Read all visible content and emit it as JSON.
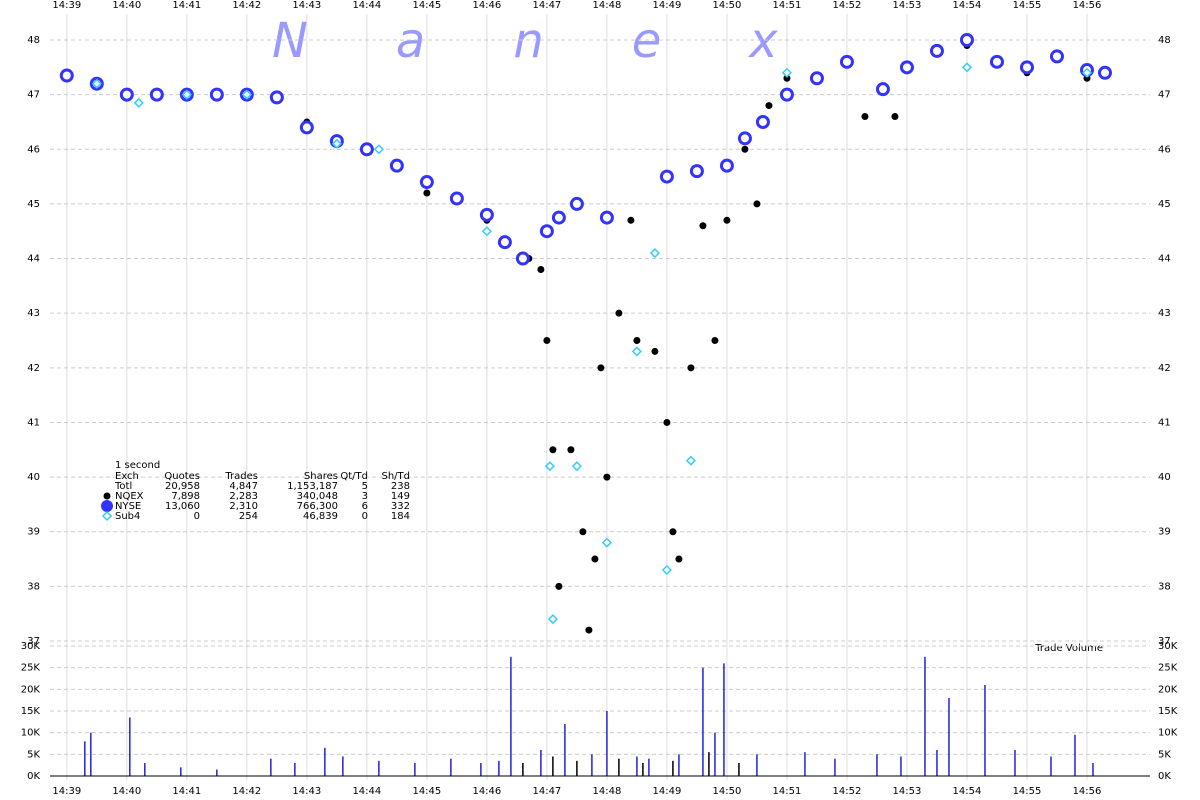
{
  "chart_data": [
    {
      "type": "scatter",
      "watermark": "Nanex",
      "xlim": [
        878.72,
        897.05
      ],
      "xticks": [
        {
          "value": 879,
          "label": "14:39"
        },
        {
          "value": 880,
          "label": "14:40"
        },
        {
          "value": 881,
          "label": "14:41"
        },
        {
          "value": 882,
          "label": "14:42"
        },
        {
          "value": 883,
          "label": "14:43"
        },
        {
          "value": 884,
          "label": "14:44"
        },
        {
          "value": 885,
          "label": "14:45"
        },
        {
          "value": 886,
          "label": "14:46"
        },
        {
          "value": 887,
          "label": "14:47"
        },
        {
          "value": 888,
          "label": "14:48"
        },
        {
          "value": 889,
          "label": "14:49"
        },
        {
          "value": 890,
          "label": "14:50"
        },
        {
          "value": 891,
          "label": "14:51"
        },
        {
          "value": 892,
          "label": "14:52"
        },
        {
          "value": 893,
          "label": "14:53"
        },
        {
          "value": 894,
          "label": "14:54"
        },
        {
          "value": 895,
          "label": "14:55"
        },
        {
          "value": 896,
          "label": "14:56"
        }
      ],
      "ylim": [
        37,
        48
      ],
      "yticks": [
        37,
        38,
        39,
        40,
        41,
        42,
        43,
        44,
        45,
        46,
        47,
        48
      ],
      "grid": true,
      "series": [
        {
          "color": "#000000",
          "marker": "dot",
          "x": [
            879,
            880,
            881,
            882,
            883,
            884,
            885,
            886,
            886.7,
            886.9,
            887,
            887.1,
            887.2,
            887.4,
            887.6,
            887.7,
            887.8,
            887.9,
            888,
            888.2,
            888.4,
            888.5,
            888.8,
            889,
            889.1,
            889.2,
            889.4,
            889.6,
            889.8,
            890,
            890.3,
            890.5,
            890.7,
            891,
            891.5,
            892,
            892.3,
            892.8,
            893,
            894,
            895,
            896,
            896.3
          ],
          "values": [
            47.35,
            47.0,
            47.0,
            47.0,
            46.5,
            46.0,
            45.2,
            44.7,
            44.0,
            43.8,
            42.5,
            40.5,
            38.0,
            40.5,
            39.0,
            37.2,
            38.5,
            42.0,
            40.0,
            43.0,
            44.7,
            42.5,
            42.3,
            41.0,
            39.0,
            38.5,
            42.0,
            44.6,
            42.5,
            44.7,
            46.0,
            45.0,
            46.8,
            47.3,
            47.3,
            47.6,
            46.6,
            46.6,
            47.5,
            47.9,
            47.4,
            47.3,
            47.4
          ]
        },
        {
          "color": "#3333ff",
          "marker": "ring",
          "x": [
            879,
            879.5,
            880,
            880.5,
            881,
            881.5,
            882,
            882.5,
            883,
            883.5,
            884,
            884.5,
            885,
            885.5,
            886,
            886.3,
            886.6,
            887,
            887.2,
            887.5,
            888,
            889,
            889.5,
            890,
            890.3,
            890.6,
            891,
            891.5,
            892,
            892.6,
            893,
            893.5,
            894,
            894.5,
            895,
            895.5,
            896,
            896.3
          ],
          "values": [
            47.35,
            47.2,
            47.0,
            47.0,
            47.0,
            47.0,
            47.0,
            46.95,
            46.4,
            46.15,
            46.0,
            45.7,
            45.4,
            45.1,
            44.8,
            44.3,
            44.0,
            44.5,
            44.75,
            45.0,
            44.75,
            45.5,
            45.6,
            45.7,
            46.2,
            46.5,
            47.0,
            47.3,
            47.6,
            47.1,
            47.5,
            47.8,
            48.0,
            47.6,
            47.5,
            47.7,
            47.45,
            47.4
          ]
        },
        {
          "color": "#33ccff",
          "marker": "diamond",
          "x": [
            879.5,
            880.2,
            881,
            882,
            883.5,
            884.2,
            886,
            887.05,
            887.1,
            887.5,
            888,
            888.5,
            888.8,
            889,
            889.4,
            891,
            894,
            896
          ],
          "values": [
            47.2,
            46.85,
            47.0,
            47.0,
            46.1,
            46.0,
            44.5,
            40.2,
            37.4,
            40.2,
            38.8,
            42.3,
            44.1,
            38.3,
            40.3,
            47.4,
            47.5,
            47.4
          ]
        }
      ],
      "stats": {
        "title": "1 second",
        "headers": [
          "Exch",
          "Quotes",
          "Trades",
          "Shares",
          "Qt/Td",
          "Sh/Td"
        ],
        "rows": [
          [
            "Totl",
            "20,958",
            "4,847",
            "1,153,187",
            "5",
            "238"
          ],
          [
            "NQEX",
            "7,898",
            "2,283",
            "340,048",
            "3",
            "149"
          ],
          [
            "NYSE",
            "13,060",
            "2,310",
            "766,300",
            "6",
            "332"
          ],
          [
            "Sub4",
            "0",
            "254",
            "46,839",
            "0",
            "184"
          ]
        ]
      }
    },
    {
      "type": "volume",
      "label": "Trade Volume",
      "ylim": [
        0,
        30000
      ],
      "yticks": [
        {
          "value": 0,
          "label": "0K"
        },
        {
          "value": 5000,
          "label": "5K"
        },
        {
          "value": 10000,
          "label": "10K"
        },
        {
          "value": 15000,
          "label": "15K"
        },
        {
          "value": 20000,
          "label": "20K"
        },
        {
          "value": 25000,
          "label": "25K"
        },
        {
          "value": 30000,
          "label": "30K"
        }
      ],
      "series": [
        {
          "color": "#2222dd",
          "x": [
            879.3,
            879.4,
            880.05,
            880.3,
            880.9,
            881.5,
            882.4,
            882.8,
            883.3,
            883.6,
            884.2,
            884.8,
            885.4,
            885.9,
            886.2,
            886.4,
            886.9,
            887.3,
            887.75,
            888.0,
            888.5,
            888.7,
            889.2,
            889.6,
            889.8,
            889.95,
            890.5,
            891.3,
            891.8,
            892.5,
            892.9,
            893.3,
            893.5,
            893.7,
            894.3,
            894.8,
            895.4,
            895.8,
            896.1
          ],
          "values": [
            8000,
            10000,
            13500,
            3000,
            2000,
            1500,
            4000,
            3000,
            6500,
            4500,
            3500,
            3000,
            4000,
            3000,
            3500,
            27500,
            6000,
            12000,
            5000,
            15000,
            4500,
            4000,
            5000,
            25000,
            10000,
            26000,
            5000,
            5500,
            4000,
            5000,
            4500,
            27500,
            6000,
            18000,
            21000,
            6000,
            4500,
            9500,
            3000
          ]
        },
        {
          "color": "#000000",
          "x": [
            886.6,
            887.1,
            887.5,
            888.2,
            888.6,
            889.1,
            889.7,
            890.2
          ],
          "values": [
            3000,
            4500,
            3500,
            4000,
            3000,
            3500,
            5500,
            3000
          ]
        }
      ]
    }
  ]
}
